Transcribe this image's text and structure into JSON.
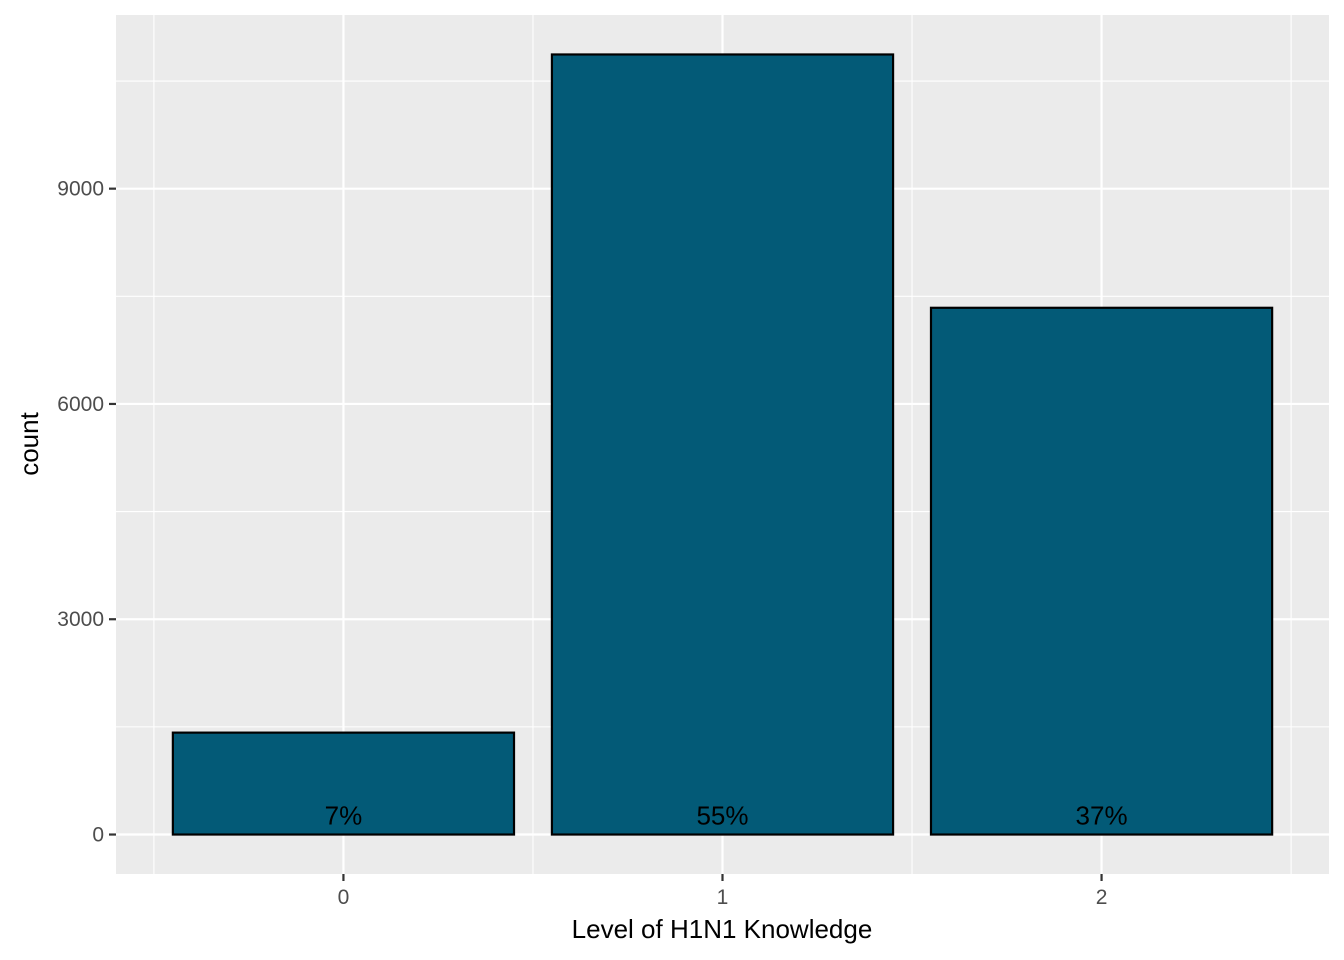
{
  "chart_data": {
    "type": "bar",
    "categories": [
      "0",
      "1",
      "2"
    ],
    "values": [
      1420,
      10870,
      7340
    ],
    "labels": [
      "7%",
      "55%",
      "37%"
    ],
    "xlabel": "Level of H1N1 Knowledge",
    "ylabel": "count",
    "yticks": [
      0,
      3000,
      6000,
      9000
    ],
    "ylim": [
      -550,
      11420
    ],
    "grid": true,
    "legend": "none",
    "colors": {
      "bar_fill": "#035a77",
      "bar_stroke": "#000000",
      "panel_bg": "#ebebeb",
      "grid": "#ffffff",
      "tick_text": "#4d4d4d"
    }
  }
}
